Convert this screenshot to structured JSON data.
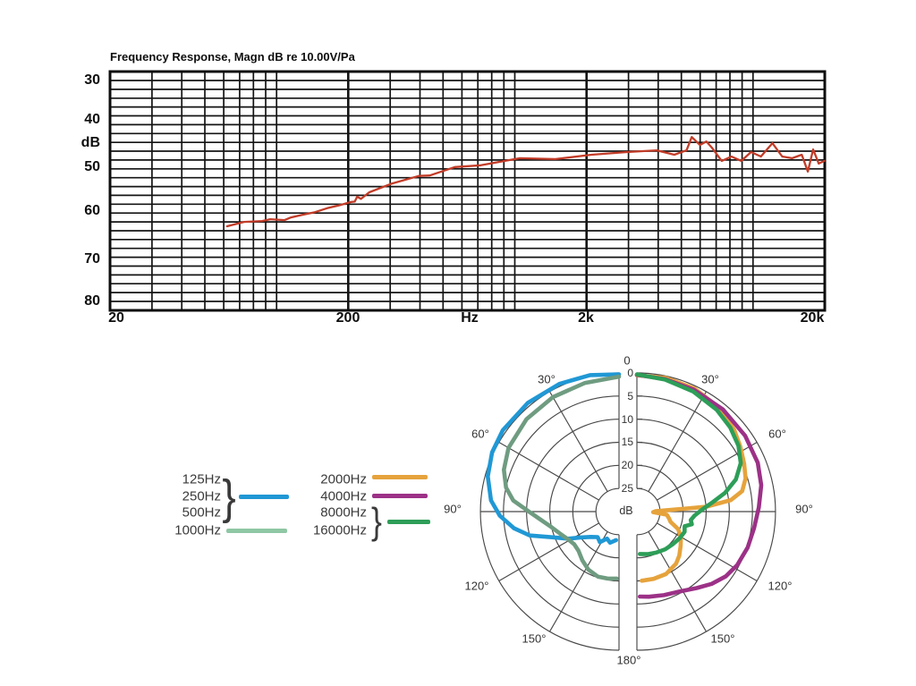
{
  "legend": {
    "brace": "}",
    "items_left": [
      {
        "labels": [
          "125Hz",
          "250Hz",
          "500Hz"
        ],
        "grouped": true,
        "color": "#2098d5"
      },
      {
        "labels": [
          "1000Hz"
        ],
        "grouped": false,
        "color": "#8fc7a4"
      }
    ],
    "items_right": [
      {
        "labels": [
          "2000Hz"
        ],
        "grouped": false,
        "color": "#e6a33c"
      },
      {
        "labels": [
          "4000Hz"
        ],
        "grouped": false,
        "color": "#9c3187"
      },
      {
        "labels": [
          "8000Hz",
          "16000Hz"
        ],
        "grouped": true,
        "color": "#2d9e58"
      }
    ]
  },
  "chart_data": [
    {
      "type": "line",
      "title": "Frequency Response, Magn dB re 10.00V/Pa",
      "x_axis": {
        "scale": "log",
        "min": 20,
        "max": 20000,
        "unit": "Hz",
        "tick_labels": [
          "20",
          "200",
          "Hz",
          "2k",
          "20k"
        ],
        "grid": "log-decades"
      },
      "y_axis": {
        "label": "dB",
        "ticks": [
          "30",
          "40",
          "50",
          "60",
          "70",
          "80"
        ],
        "min": 28,
        "max": 82,
        "inverted": true,
        "grid_step_dB": 2
      },
      "series": [
        {
          "name": "on-axis-response",
          "color": "#c23c28",
          "points": [
            [
              62,
              63.0
            ],
            [
              73,
              62.0
            ],
            [
              87,
              61.8
            ],
            [
              94,
              61.4
            ],
            [
              108,
              61.6
            ],
            [
              115,
              61.0
            ],
            [
              128,
              60.4
            ],
            [
              145,
              59.8
            ],
            [
              163,
              58.9
            ],
            [
              182,
              58.3
            ],
            [
              205,
              57.5
            ],
            [
              213,
              57.4
            ],
            [
              218,
              56.3
            ],
            [
              226,
              56.8
            ],
            [
              245,
              55.3
            ],
            [
              306,
              53.3
            ],
            [
              396,
              51.6
            ],
            [
              440,
              51.5
            ],
            [
              560,
              49.6
            ],
            [
              720,
              49.2
            ],
            [
              1050,
              47.6
            ],
            [
              1480,
              47.8
            ],
            [
              2100,
              46.8
            ],
            [
              2960,
              46.2
            ],
            [
              3940,
              45.8
            ],
            [
              4670,
              46.8
            ],
            [
              5260,
              45.8
            ],
            [
              5530,
              42.8
            ],
            [
              5980,
              44.6
            ],
            [
              6370,
              43.8
            ],
            [
              6720,
              45.2
            ],
            [
              7390,
              48.2
            ],
            [
              8120,
              47.2
            ],
            [
              8930,
              48.2
            ],
            [
              9810,
              46.2
            ],
            [
              10790,
              47.2
            ],
            [
              12060,
              44.2
            ],
            [
              13250,
              47.2
            ],
            [
              14570,
              47.6
            ],
            [
              16010,
              46.8
            ],
            [
              16980,
              50.6
            ],
            [
              17880,
              45.6
            ],
            [
              18880,
              48.8
            ],
            [
              19920,
              48.2
            ]
          ]
        }
      ]
    },
    {
      "type": "polar",
      "kind": "directivity-pattern-split",
      "radial_scale": {
        "labels": [
          "0",
          "5",
          "10",
          "15",
          "20",
          "25"
        ],
        "unit": "dB",
        "step": 5,
        "center_cutoff": 30
      },
      "angles": {
        "top": "0",
        "bottom": "180°",
        "left": [
          "30°",
          "60°",
          "90°",
          "120°",
          "150°"
        ],
        "right": [
          "30°",
          "60°",
          "90°",
          "120°",
          "150°"
        ]
      },
      "series": [
        {
          "name": "125Hz-500Hz",
          "side": "left",
          "color": "#2098d5",
          "points": [
            [
              0,
              0.3
            ],
            [
              12,
              -0.2
            ],
            [
              25,
              -0.5
            ],
            [
              40,
              -0.7
            ],
            [
              55,
              -0.7
            ],
            [
              65,
              -0.3
            ],
            [
              75,
              0.6
            ],
            [
              85,
              2.2
            ],
            [
              92,
              4.2
            ],
            [
              99,
              7
            ],
            [
              105,
              10
            ],
            [
              111,
              14.5
            ],
            [
              118,
              17.5
            ],
            [
              124,
              20
            ],
            [
              132,
              21.8
            ],
            [
              140,
              22.8
            ],
            [
              148,
              22.2
            ],
            [
              156,
              23.6
            ],
            [
              164,
              23.0
            ],
            [
              174,
              23.8
            ]
          ]
        },
        {
          "name": "1000Hz",
          "side": "left",
          "color": "#6f9c81",
          "points": [
            [
              0,
              0.8
            ],
            [
              15,
              1.2
            ],
            [
              30,
              1.4
            ],
            [
              45,
              1.7
            ],
            [
              60,
              2.4
            ],
            [
              70,
              3.5
            ],
            [
              78,
              5
            ],
            [
              84,
              7
            ],
            [
              90,
              10.5
            ],
            [
              96,
              13
            ],
            [
              103,
              15
            ],
            [
              110,
              16.3
            ],
            [
              118,
              17.4
            ],
            [
              126,
              18
            ],
            [
              134,
              17.8
            ],
            [
              143,
              16.8
            ],
            [
              152,
              15.8
            ],
            [
              162,
              15.2
            ],
            [
              170,
              15.3
            ],
            [
              178,
              15.5
            ]
          ]
        },
        {
          "name": "2000Hz",
          "side": "right",
          "color": "#e6a33c",
          "points": [
            [
              0,
              0.5
            ],
            [
              12,
              0.4
            ],
            [
              25,
              0.6
            ],
            [
              38,
              1.3
            ],
            [
              50,
              2.5
            ],
            [
              58,
              3.6
            ],
            [
              66,
              4.6
            ],
            [
              73,
              5.4
            ],
            [
              79,
              6.8
            ],
            [
              83,
              9.5
            ],
            [
              86,
              15
            ],
            [
              89,
              26
            ],
            [
              92,
              26.5
            ],
            [
              96,
              23.5
            ],
            [
              102,
              22.9
            ],
            [
              107,
              22.4
            ],
            [
              113,
              20.3
            ],
            [
              120,
              19
            ],
            [
              128,
              18
            ],
            [
              136,
              16.8
            ],
            [
              143,
              15.9
            ],
            [
              155,
              15.1
            ],
            [
              166,
              15
            ],
            [
              176,
              15
            ]
          ]
        },
        {
          "name": "4000Hz",
          "side": "right",
          "color": "#9c3187",
          "points": [
            [
              0,
              0.4
            ],
            [
              12,
              0.7
            ],
            [
              25,
              0.9
            ],
            [
              40,
              1.1
            ],
            [
              55,
              1.4
            ],
            [
              68,
              1.8
            ],
            [
              78,
              2.5
            ],
            [
              88,
              3.6
            ],
            [
              98,
              4.4
            ],
            [
              108,
              4.8
            ],
            [
              118,
              5.4
            ],
            [
              126,
              6.2
            ],
            [
              134,
              7.5
            ],
            [
              142,
              9
            ],
            [
              152,
              10.4
            ],
            [
              162,
              11
            ],
            [
              172,
              11.4
            ],
            [
              178,
              11.6
            ]
          ]
        },
        {
          "name": "8000Hz-16000Hz",
          "side": "right",
          "color": "#2d9e58",
          "points": [
            [
              0,
              0.3
            ],
            [
              12,
              0.8
            ],
            [
              25,
              1.3
            ],
            [
              38,
              2
            ],
            [
              48,
              2.8
            ],
            [
              57,
              3.8
            ],
            [
              65,
              5.2
            ],
            [
              72,
              7.5
            ],
            [
              78,
              10.5
            ],
            [
              83,
              13.5
            ],
            [
              88,
              15.8
            ],
            [
              94,
              17.5
            ],
            [
              99,
              18.2
            ],
            [
              103,
              17.8
            ],
            [
              107,
              19.2
            ],
            [
              113,
              18.8
            ],
            [
              122,
              19.1
            ],
            [
              132,
              19.5
            ],
            [
              143,
              19.8
            ],
            [
              155,
              20.2
            ],
            [
              166,
              20.5
            ],
            [
              176,
              20.8
            ]
          ]
        }
      ]
    }
  ]
}
